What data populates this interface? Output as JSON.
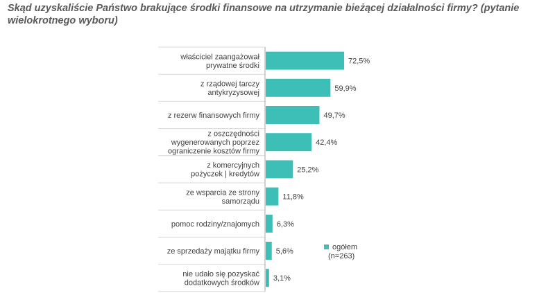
{
  "title": "Skąd uzyskaliście Państwo brakujące środki finansowe na utrzymanie bieżącej działalności firmy? (pytanie wielokrotnego wyboru)",
  "colors": {
    "bar": "#3dbfb8",
    "axis": "#a6a6a6",
    "text": "#404040"
  },
  "chart_data": {
    "type": "bar",
    "orientation": "horizontal",
    "categories": [
      [
        "właściciel zaangażował",
        "prywatne środki"
      ],
      [
        "z rządowej tarczy",
        "antykryzysowej"
      ],
      [
        "z rezerw finansowych firmy"
      ],
      [
        "z oszczędności",
        "wygenerowanych poprzez",
        "ograniczenie kosztów firmy"
      ],
      [
        "z komercyjnych",
        "pożyczek | kredytów"
      ],
      [
        "ze wsparcia ze strony",
        "samorządu"
      ],
      [
        "pomoc rodziny/znajomych"
      ],
      [
        "ze sprzedaży majątku firmy"
      ],
      [
        "nie udało się pozyskać",
        "dodatkowych środków"
      ]
    ],
    "values": [
      72.5,
      59.9,
      49.7,
      42.4,
      25.2,
      11.8,
      6.3,
      5.6,
      3.1
    ],
    "value_labels": [
      "72,5%",
      "59,9%",
      "49,7%",
      "42,4%",
      "25,2%",
      "11,8%",
      "6,3%",
      "5,6%",
      "3,1%"
    ],
    "series": [
      {
        "name": "ogółem",
        "name2": "(n=263)"
      }
    ],
    "xlim": [
      0,
      100
    ],
    "grid": false,
    "legend": "right"
  }
}
